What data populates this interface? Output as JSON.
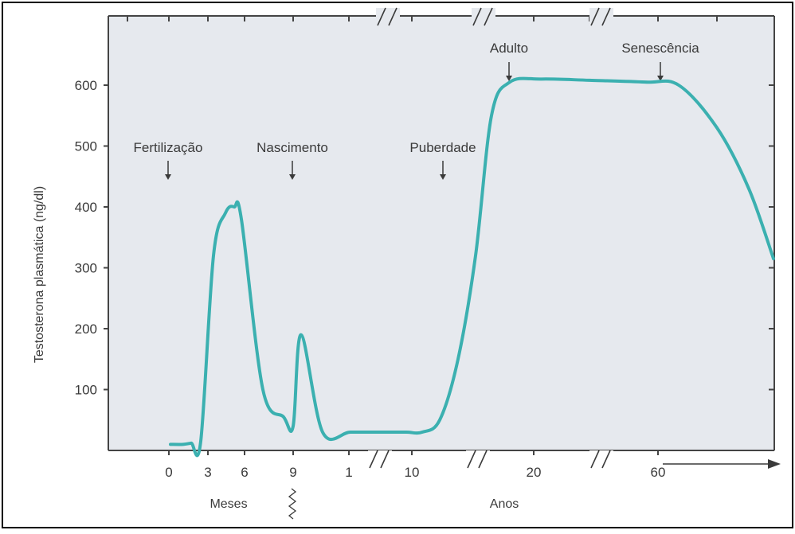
{
  "chart_data": {
    "type": "line",
    "ylabel": "Testosterona plasmática (ng/dl)",
    "ylim": [
      0,
      600
    ],
    "yticks": [
      100,
      200,
      300,
      400,
      500,
      600
    ],
    "xticks": [
      "0",
      "3",
      "6",
      "9",
      "1",
      "10",
      "20",
      "60"
    ],
    "xgroups": [
      "Meses",
      "Anos"
    ],
    "annotations": [
      "Fertilização",
      "Nascimento",
      "Puberdade",
      "Adulto",
      "Senescência"
    ],
    "series": [
      {
        "values": [
          10,
          10,
          12,
          15,
          320,
          390,
          400,
          380,
          100,
          55,
          40,
          190,
          30,
          30,
          30,
          30,
          30,
          50,
          150,
          320,
          550,
          605,
          610,
          608,
          605,
          600,
          530,
          430,
          315
        ],
        "color": "#3bb0b0"
      }
    ],
    "grid": false
  }
}
